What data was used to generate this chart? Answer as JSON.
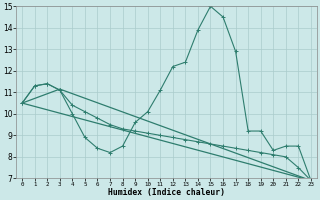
{
  "xlabel": "Humidex (Indice chaleur)",
  "background_color": "#cce8e8",
  "grid_color": "#aacccc",
  "line_color": "#2e7d6e",
  "xlim": [
    -0.5,
    23.5
  ],
  "ylim": [
    7,
    15
  ],
  "yticks": [
    7,
    8,
    9,
    10,
    11,
    12,
    13,
    14,
    15
  ],
  "xticks": [
    0,
    1,
    2,
    3,
    4,
    5,
    6,
    7,
    8,
    9,
    10,
    11,
    12,
    13,
    14,
    15,
    16,
    17,
    18,
    19,
    20,
    21,
    22,
    23
  ],
  "series_zigzag": {
    "x": [
      0,
      1,
      2,
      3,
      4,
      5,
      6,
      7,
      8,
      9,
      10,
      11,
      12,
      13,
      14,
      15,
      16,
      17,
      18,
      19,
      20,
      21,
      22,
      23
    ],
    "y": [
      10.5,
      11.3,
      11.4,
      11.1,
      10.0,
      8.9,
      8.4,
      8.2,
      8.5,
      9.6,
      10.1,
      11.1,
      12.2,
      12.4,
      13.9,
      15.0,
      14.5,
      12.9,
      9.2,
      9.2,
      8.3,
      8.5,
      8.5,
      6.9
    ]
  },
  "series_smooth": {
    "x": [
      0,
      1,
      2,
      3,
      4,
      5,
      6,
      7,
      8,
      9,
      10,
      11,
      12,
      13,
      14,
      15,
      16,
      17,
      18,
      19,
      20,
      21,
      22,
      23
    ],
    "y": [
      10.5,
      11.3,
      11.4,
      11.1,
      10.4,
      10.1,
      9.8,
      9.5,
      9.3,
      9.2,
      9.1,
      9.0,
      8.9,
      8.8,
      8.7,
      8.6,
      8.5,
      8.4,
      8.3,
      8.2,
      8.1,
      8.0,
      7.5,
      6.9
    ]
  },
  "series_line1": {
    "x": [
      0,
      23
    ],
    "y": [
      10.5,
      6.9
    ]
  },
  "series_line2": {
    "x": [
      0,
      3,
      23
    ],
    "y": [
      10.5,
      11.15,
      6.9
    ]
  }
}
